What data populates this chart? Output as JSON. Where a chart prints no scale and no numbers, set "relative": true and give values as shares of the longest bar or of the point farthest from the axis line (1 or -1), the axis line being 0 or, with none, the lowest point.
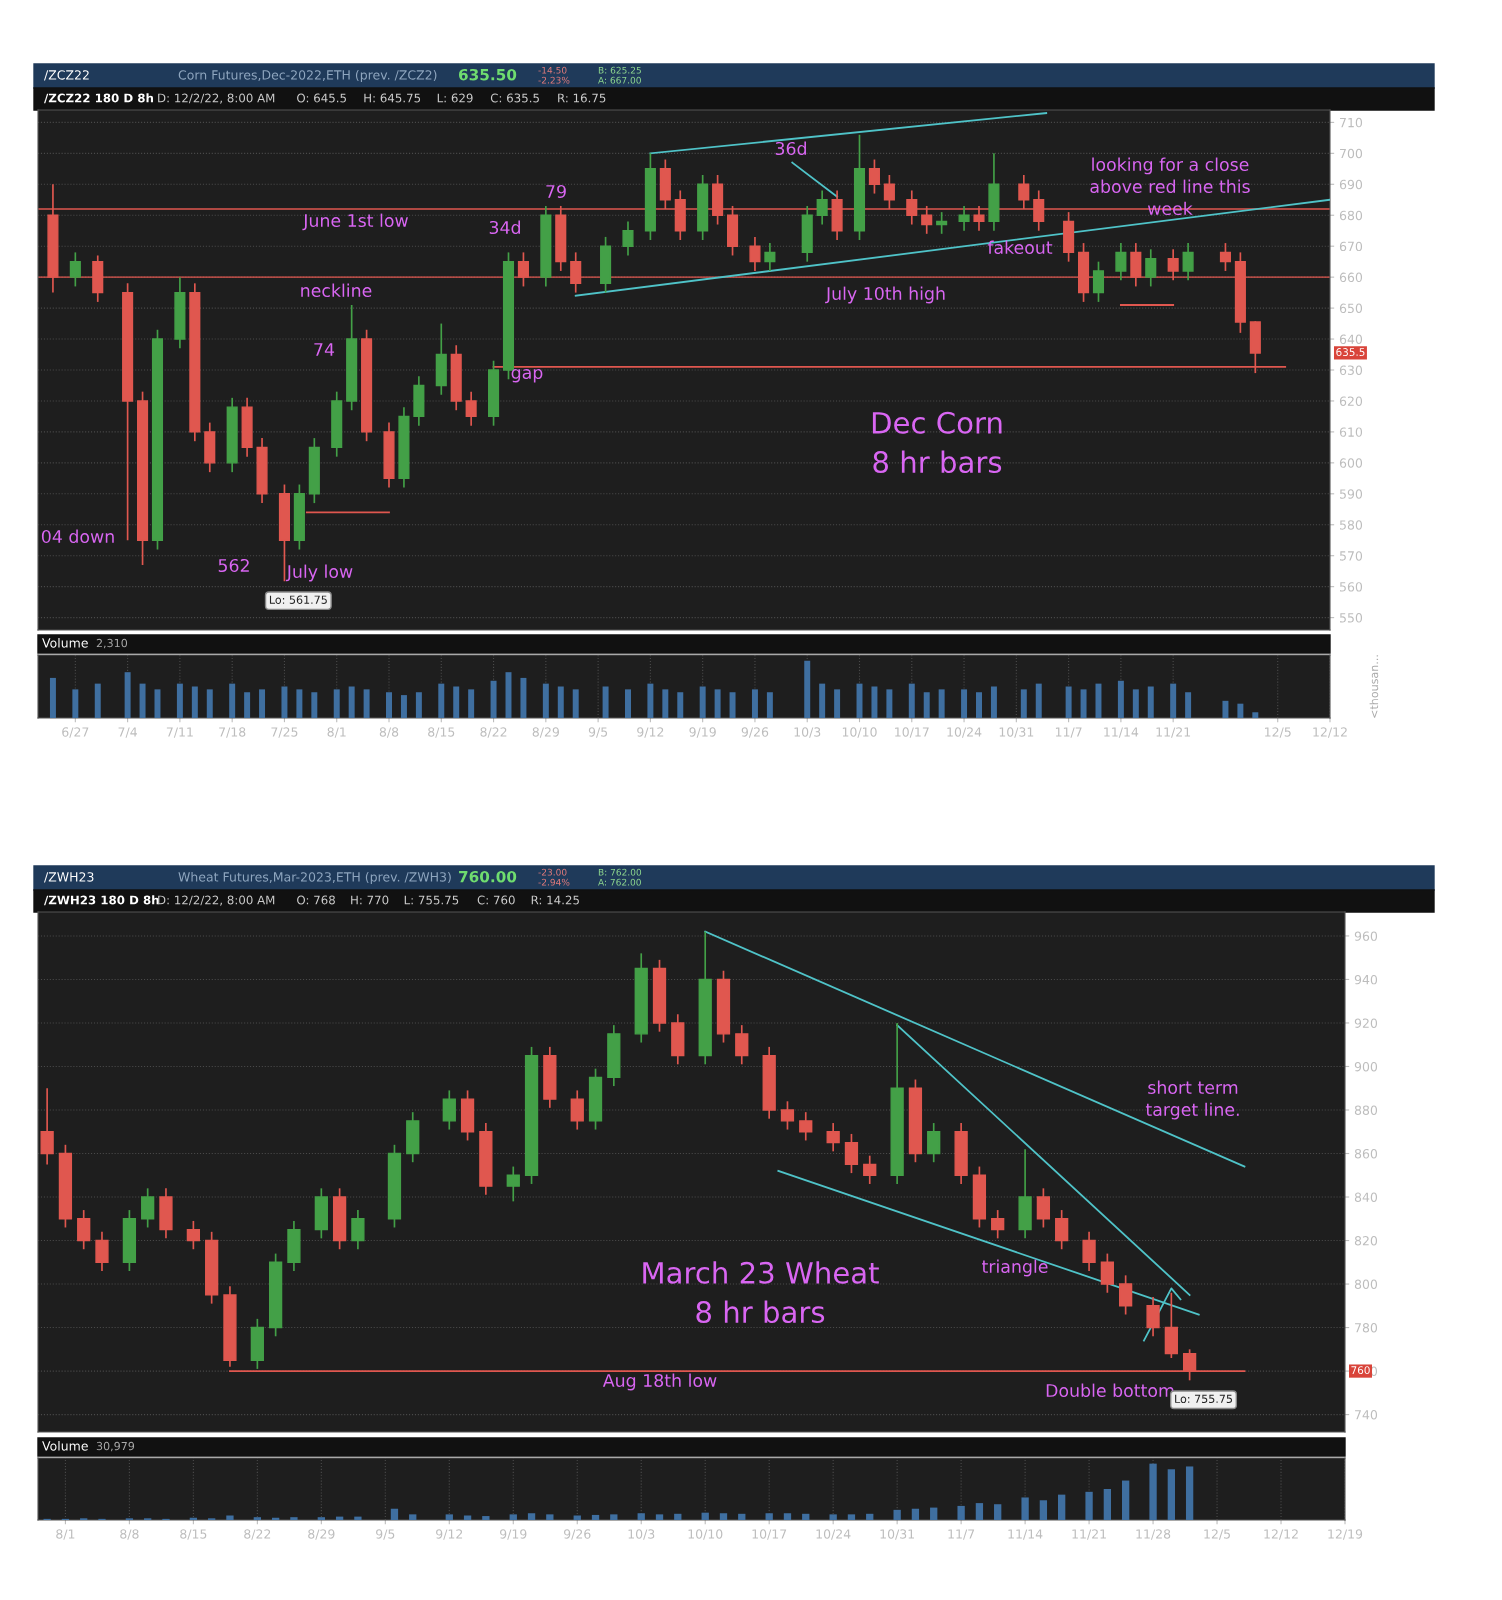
{
  "chart_data": [
    {
      "type": "candlestick",
      "title": "/ZCZ22",
      "subtitle": "Corn Futures,Dec-2022,ETH (prev. /ZCZ2)",
      "x": [
        "2022-06-24",
        "2022-06-27",
        "2022-06-30",
        "2022-07-04",
        "2022-07-06",
        "2022-07-08",
        "2022-07-11",
        "2022-07-13",
        "2022-07-15",
        "2022-07-18",
        "2022-07-20",
        "2022-07-22",
        "2022-07-25",
        "2022-07-27",
        "2022-07-29",
        "2022-08-01",
        "2022-08-03",
        "2022-08-05",
        "2022-08-08",
        "2022-08-10",
        "2022-08-12",
        "2022-08-15",
        "2022-08-17",
        "2022-08-19",
        "2022-08-22",
        "2022-08-24",
        "2022-08-26",
        "2022-08-29",
        "2022-08-31",
        "2022-09-02",
        "2022-09-06",
        "2022-09-09",
        "2022-09-12",
        "2022-09-14",
        "2022-09-16",
        "2022-09-19",
        "2022-09-21",
        "2022-09-23",
        "2022-09-26",
        "2022-09-28",
        "2022-10-03",
        "2022-10-05",
        "2022-10-07",
        "2022-10-10",
        "2022-10-12",
        "2022-10-14",
        "2022-10-17",
        "2022-10-19",
        "2022-10-21",
        "2022-10-24",
        "2022-10-26",
        "2022-10-28",
        "2022-11-01",
        "2022-11-03",
        "2022-11-07",
        "2022-11-09",
        "2022-11-11",
        "2022-11-14",
        "2022-11-16",
        "2022-11-18",
        "2022-11-21",
        "2022-11-23",
        "2022-11-28",
        "2022-11-30",
        "2022-12-02"
      ],
      "ohlc": [
        [
          680,
          690,
          655,
          660
        ],
        [
          660,
          668,
          657,
          665
        ],
        [
          665,
          667,
          652,
          655
        ],
        [
          655,
          658,
          575,
          620
        ],
        [
          620,
          623,
          567,
          575
        ],
        [
          575,
          643,
          572,
          640
        ],
        [
          640,
          660,
          637,
          655
        ],
        [
          655,
          658,
          607,
          610
        ],
        [
          610,
          613,
          597,
          600
        ],
        [
          600,
          621,
          597,
          618
        ],
        [
          618,
          621,
          602,
          605
        ],
        [
          605,
          608,
          587,
          590
        ],
        [
          590,
          593,
          561.75,
          575
        ],
        [
          575,
          593,
          572,
          590
        ],
        [
          590,
          608,
          587,
          605
        ],
        [
          605,
          623,
          602,
          620
        ],
        [
          620,
          651,
          617,
          640
        ],
        [
          640,
          643,
          607,
          610
        ],
        [
          610,
          613,
          592,
          595
        ],
        [
          595,
          618,
          592,
          615
        ],
        [
          615,
          628,
          612,
          625
        ],
        [
          625,
          645,
          622,
          635
        ],
        [
          635,
          638,
          617,
          620
        ],
        [
          620,
          623,
          612,
          615
        ],
        [
          615,
          633,
          612,
          630
        ],
        [
          630,
          668,
          627,
          665
        ],
        [
          665,
          668,
          657,
          660
        ],
        [
          660,
          683,
          657,
          680
        ],
        [
          680,
          683,
          662,
          665
        ],
        [
          665,
          668,
          655,
          658
        ],
        [
          658,
          673,
          655,
          670
        ],
        [
          670,
          678,
          667,
          675
        ],
        [
          675,
          700,
          672,
          695
        ],
        [
          695,
          698,
          682,
          685
        ],
        [
          685,
          688,
          672,
          675
        ],
        [
          675,
          693,
          672,
          690
        ],
        [
          690,
          693,
          677,
          680
        ],
        [
          680,
          683,
          667,
          670
        ],
        [
          670,
          673,
          662,
          665
        ],
        [
          665,
          671,
          662,
          668
        ],
        [
          668,
          683,
          665,
          680
        ],
        [
          680,
          688,
          677,
          685
        ],
        [
          685,
          688,
          672,
          675
        ],
        [
          675,
          706,
          672,
          695
        ],
        [
          695,
          698,
          687,
          690
        ],
        [
          690,
          693,
          682,
          685
        ],
        [
          685,
          688,
          677,
          680
        ],
        [
          680,
          683,
          674,
          677
        ],
        [
          677,
          681,
          674,
          678
        ],
        [
          678,
          683,
          675,
          680
        ],
        [
          680,
          683,
          675,
          678
        ],
        [
          678,
          700,
          675,
          690
        ],
        [
          690,
          693,
          682,
          685
        ],
        [
          685,
          688,
          675,
          678
        ],
        [
          678,
          681,
          665,
          668
        ],
        [
          668,
          671,
          652,
          655
        ],
        [
          655,
          665,
          652,
          662
        ],
        [
          662,
          671,
          659,
          668
        ],
        [
          668,
          671,
          657,
          660
        ],
        [
          660,
          669,
          657,
          666
        ],
        [
          666,
          669,
          659,
          662
        ],
        [
          662,
          671,
          659,
          668
        ],
        [
          668,
          671,
          662,
          665
        ],
        [
          665,
          668,
          642,
          645.5
        ],
        [
          645.5,
          645.75,
          629,
          635.5
        ]
      ],
      "colors": [
        "#e0574f",
        "#43a047",
        "#e0574f",
        "#e0574f",
        "#e0574f",
        "#43a047",
        "#43a047",
        "#e0574f",
        "#e0574f",
        "#43a047",
        "#e0574f",
        "#e0574f",
        "#e0574f",
        "#43a047",
        "#43a047",
        "#43a047",
        "#43a047",
        "#e0574f",
        "#e0574f",
        "#43a047",
        "#43a047",
        "#43a047",
        "#e0574f",
        "#e0574f",
        "#43a047",
        "#43a047",
        "#e0574f",
        "#43a047",
        "#e0574f",
        "#e0574f",
        "#43a047",
        "#43a047",
        "#43a047",
        "#e0574f",
        "#e0574f",
        "#43a047",
        "#e0574f",
        "#e0574f",
        "#e0574f",
        "#43a047",
        "#43a047",
        "#43a047",
        "#e0574f",
        "#43a047",
        "#e0574f",
        "#e0574f",
        "#e0574f",
        "#e0574f",
        "#43a047",
        "#43a047",
        "#e0574f",
        "#43a047",
        "#e0574f",
        "#e0574f",
        "#e0574f",
        "#e0574f",
        "#43a047",
        "#43a047",
        "#e0574f",
        "#43a047",
        "#e0574f",
        "#43a047",
        "#e0574f",
        "#e0574f",
        "#e0574f"
      ],
      "series": [
        {
          "type": "line",
          "color": "#4fc3c8",
          "x": [
            "2022-09-12",
            "2022-11-04"
          ],
          "values": [
            700,
            713
          ]
        },
        {
          "type": "line",
          "color": "#4fc3c8",
          "x": [
            "2022-09-02",
            "2022-12-12"
          ],
          "values": [
            654,
            685
          ]
        },
        {
          "type": "line",
          "color": "#4fc3c8",
          "x": [
            "2022-10-01",
            "2022-10-07"
          ],
          "values": [
            697,
            686
          ]
        },
        {
          "type": "line",
          "color": "#e0574f",
          "x": [
            "2022-07-28",
            "2022-08-08"
          ],
          "values": [
            584,
            584
          ]
        },
        {
          "type": "line",
          "color": "#e0574f",
          "x": [
            "2022-11-14",
            "2022-11-21"
          ],
          "values": [
            651,
            651
          ]
        },
        {
          "type": "line",
          "color": "#e0574f",
          "x": [
            "2022-08-22",
            "2022-12-06"
          ],
          "values": [
            631,
            631
          ]
        }
      ],
      "ref_lines": [
        {
          "axis": "y",
          "value": 682,
          "color": "#e0574f"
        },
        {
          "axis": "y",
          "value": 660,
          "color": "#e0574f"
        }
      ],
      "annotations": [
        "635.50",
        "-14.50",
        "-2.23%",
        "B: 625.25",
        "A: 667.00",
        "/ZCZ22 180 D 8h",
        "D: 12/2/22, 8:00 AM",
        "O: 645.5",
        "H: 645.75",
        "L: 629",
        "C: 635.5",
        "R: 16.75",
        "Dec Corn\n8 hr bars",
        "June 1st low",
        "neckline",
        "gap",
        "July 10th high",
        "looking for a close\nabove red line this\nweek",
        "fakeout",
        "79",
        "34d",
        "36d",
        "74",
        "562",
        "July low",
        "04 down",
        "635.5",
        {
          "text": "Lo: 561.75",
          "x": "2022-07-25",
          "y": 561.75
        }
      ],
      "xlim": [
        "2022-06-22",
        "2022-12-12"
      ],
      "ylim": [
        546,
        714
      ],
      "yticks": [
        550,
        560,
        570,
        580,
        590,
        600,
        610,
        620,
        630,
        640,
        650,
        660,
        670,
        680,
        690,
        700,
        710
      ],
      "tick_labels": "y",
      "grid": true
    },
    {
      "type": "bar",
      "title": "Volume",
      "relative": true,
      "ylabel": "<thousan...",
      "annotations": [
        "2,310"
      ],
      "tick_labels": "x",
      "grid": true,
      "x": [
        "2022-06-24",
        "2022-06-27",
        "2022-06-30",
        "2022-07-04",
        "2022-07-06",
        "2022-07-08",
        "2022-07-11",
        "2022-07-13",
        "2022-07-15",
        "2022-07-18",
        "2022-07-20",
        "2022-07-22",
        "2022-07-25",
        "2022-07-27",
        "2022-07-29",
        "2022-08-01",
        "2022-08-03",
        "2022-08-05",
        "2022-08-08",
        "2022-08-10",
        "2022-08-12",
        "2022-08-15",
        "2022-08-17",
        "2022-08-19",
        "2022-08-22",
        "2022-08-24",
        "2022-08-26",
        "2022-08-29",
        "2022-08-31",
        "2022-09-02",
        "2022-09-06",
        "2022-09-09",
        "2022-09-12",
        "2022-09-14",
        "2022-09-16",
        "2022-09-19",
        "2022-09-21",
        "2022-09-23",
        "2022-09-26",
        "2022-09-28",
        "2022-10-03",
        "2022-10-05",
        "2022-10-07",
        "2022-10-10",
        "2022-10-12",
        "2022-10-14",
        "2022-10-17",
        "2022-10-19",
        "2022-10-21",
        "2022-10-24",
        "2022-10-26",
        "2022-10-28",
        "2022-11-01",
        "2022-11-03",
        "2022-11-07",
        "2022-11-09",
        "2022-11-11",
        "2022-11-14",
        "2022-11-16",
        "2022-11-18",
        "2022-11-21",
        "2022-11-23",
        "2022-11-28",
        "2022-11-30",
        "2022-12-02"
      ],
      "values": [
        0.7,
        0.5,
        0.6,
        0.8,
        0.6,
        0.5,
        0.6,
        0.55,
        0.5,
        0.6,
        0.45,
        0.5,
        0.55,
        0.5,
        0.45,
        0.5,
        0.55,
        0.5,
        0.45,
        0.4,
        0.45,
        0.6,
        0.55,
        0.5,
        0.65,
        0.8,
        0.7,
        0.6,
        0.55,
        0.5,
        0.55,
        0.5,
        0.6,
        0.5,
        0.45,
        0.55,
        0.5,
        0.45,
        0.5,
        0.45,
        1,
        0.6,
        0.5,
        0.6,
        0.55,
        0.5,
        0.6,
        0.45,
        0.5,
        0.5,
        0.45,
        0.55,
        0.5,
        0.6,
        0.55,
        0.5,
        0.6,
        0.65,
        0.5,
        0.55,
        0.6,
        0.45,
        0.3,
        0.25,
        0.1
      ],
      "color": "#3f6fa0",
      "xlim": [
        "2022-06-22",
        "2022-12-12"
      ],
      "xticks": [
        {
          "value": "2022-06-27",
          "label": "6/27"
        },
        {
          "value": "2022-07-04",
          "label": "7/4"
        },
        {
          "value": "2022-07-11",
          "label": "7/11"
        },
        {
          "value": "2022-07-18",
          "label": "7/18"
        },
        {
          "value": "2022-07-25",
          "label": "7/25"
        },
        {
          "value": "2022-08-01",
          "label": "8/1"
        },
        {
          "value": "2022-08-08",
          "label": "8/8"
        },
        {
          "value": "2022-08-15",
          "label": "8/15"
        },
        {
          "value": "2022-08-22",
          "label": "8/22"
        },
        {
          "value": "2022-08-29",
          "label": "8/29"
        },
        {
          "value": "2022-09-05",
          "label": "9/5"
        },
        {
          "value": "2022-09-12",
          "label": "9/12"
        },
        {
          "value": "2022-09-19",
          "label": "9/19"
        },
        {
          "value": "2022-09-26",
          "label": "9/26"
        },
        {
          "value": "2022-10-03",
          "label": "10/3"
        },
        {
          "value": "2022-10-10",
          "label": "10/10"
        },
        {
          "value": "2022-10-17",
          "label": "10/17"
        },
        {
          "value": "2022-10-24",
          "label": "10/24"
        },
        {
          "value": "2022-10-31",
          "label": "10/31"
        },
        {
          "value": "2022-11-07",
          "label": "11/7"
        },
        {
          "value": "2022-11-14",
          "label": "11/14"
        },
        {
          "value": "2022-11-21",
          "label": "11/21"
        },
        {
          "value": "2022-12-05",
          "label": "12/5"
        },
        {
          "value": "2022-12-12",
          "label": "12/12"
        }
      ]
    },
    {
      "type": "candlestick",
      "title": "/ZWH23",
      "subtitle": "Wheat Futures,Mar-2023,ETH (prev. /ZWH3)",
      "x": [
        "2022-07-30",
        "2022-08-01",
        "2022-08-03",
        "2022-08-05",
        "2022-08-08",
        "2022-08-10",
        "2022-08-12",
        "2022-08-15",
        "2022-08-17",
        "2022-08-19",
        "2022-08-22",
        "2022-08-24",
        "2022-08-26",
        "2022-08-29",
        "2022-08-31",
        "2022-09-02",
        "2022-09-06",
        "2022-09-08",
        "2022-09-12",
        "2022-09-14",
        "2022-09-16",
        "2022-09-19",
        "2022-09-21",
        "2022-09-23",
        "2022-09-26",
        "2022-09-28",
        "2022-09-30",
        "2022-10-03",
        "2022-10-05",
        "2022-10-07",
        "2022-10-10",
        "2022-10-12",
        "2022-10-14",
        "2022-10-17",
        "2022-10-19",
        "2022-10-21",
        "2022-10-24",
        "2022-10-26",
        "2022-10-28",
        "2022-10-31",
        "2022-11-02",
        "2022-11-04",
        "2022-11-07",
        "2022-11-09",
        "2022-11-11",
        "2022-11-14",
        "2022-11-16",
        "2022-11-18",
        "2022-11-21",
        "2022-11-23",
        "2022-11-25",
        "2022-11-28",
        "2022-11-30",
        "2022-12-02"
      ],
      "ohlc": [
        [
          870,
          890,
          855,
          860
        ],
        [
          860,
          864,
          826,
          830
        ],
        [
          830,
          834,
          816,
          820
        ],
        [
          820,
          824,
          806,
          810
        ],
        [
          810,
          834,
          806,
          830
        ],
        [
          830,
          844,
          826,
          840
        ],
        [
          840,
          844,
          821,
          825
        ],
        [
          825,
          829,
          816,
          820
        ],
        [
          820,
          824,
          791,
          795
        ],
        [
          795,
          799,
          762,
          765
        ],
        [
          765,
          784,
          761,
          780
        ],
        [
          780,
          814,
          776,
          810
        ],
        [
          810,
          829,
          806,
          825
        ],
        [
          825,
          844,
          821,
          840
        ],
        [
          840,
          844,
          816,
          820
        ],
        [
          820,
          834,
          816,
          830
        ],
        [
          830,
          864,
          826,
          860
        ],
        [
          860,
          879,
          856,
          875
        ],
        [
          875,
          889,
          871,
          885
        ],
        [
          885,
          889,
          866,
          870
        ],
        [
          870,
          874,
          841,
          845
        ],
        [
          845,
          854,
          838,
          850
        ],
        [
          850,
          909,
          846,
          905
        ],
        [
          905,
          909,
          881,
          885
        ],
        [
          885,
          889,
          871,
          875
        ],
        [
          875,
          899,
          871,
          895
        ],
        [
          895,
          919,
          891,
          915
        ],
        [
          915,
          952,
          911,
          945
        ],
        [
          945,
          949,
          916,
          920
        ],
        [
          920,
          924,
          901,
          905
        ],
        [
          905,
          962,
          901,
          940
        ],
        [
          940,
          944,
          911,
          915
        ],
        [
          915,
          919,
          901,
          905
        ],
        [
          905,
          909,
          876,
          880
        ],
        [
          880,
          884,
          871,
          875
        ],
        [
          875,
          879,
          866,
          870
        ],
        [
          870,
          874,
          861,
          865
        ],
        [
          865,
          869,
          851,
          855
        ],
        [
          855,
          859,
          846,
          850
        ],
        [
          850,
          920,
          846,
          890
        ],
        [
          890,
          894,
          856,
          860
        ],
        [
          860,
          874,
          856,
          870
        ],
        [
          870,
          874,
          846,
          850
        ],
        [
          850,
          854,
          826,
          830
        ],
        [
          830,
          834,
          821,
          825
        ],
        [
          825,
          862,
          821,
          840
        ],
        [
          840,
          844,
          826,
          830
        ],
        [
          830,
          834,
          816,
          820
        ],
        [
          820,
          824,
          806,
          810
        ],
        [
          810,
          814,
          796,
          800
        ],
        [
          800,
          804,
          786,
          790
        ],
        [
          790,
          794,
          776,
          780
        ],
        [
          780,
          796,
          766,
          768
        ],
        [
          768,
          770,
          755.75,
          760
        ]
      ],
      "colors": [
        "#e0574f",
        "#e0574f",
        "#e0574f",
        "#e0574f",
        "#43a047",
        "#43a047",
        "#e0574f",
        "#e0574f",
        "#e0574f",
        "#e0574f",
        "#43a047",
        "#43a047",
        "#43a047",
        "#43a047",
        "#e0574f",
        "#43a047",
        "#43a047",
        "#43a047",
        "#43a047",
        "#e0574f",
        "#e0574f",
        "#43a047",
        "#43a047",
        "#e0574f",
        "#e0574f",
        "#43a047",
        "#43a047",
        "#43a047",
        "#e0574f",
        "#e0574f",
        "#43a047",
        "#e0574f",
        "#e0574f",
        "#e0574f",
        "#e0574f",
        "#e0574f",
        "#e0574f",
        "#e0574f",
        "#e0574f",
        "#43a047",
        "#e0574f",
        "#43a047",
        "#e0574f",
        "#e0574f",
        "#e0574f",
        "#43a047",
        "#e0574f",
        "#e0574f",
        "#e0574f",
        "#e0574f",
        "#e0574f",
        "#e0574f",
        "#e0574f",
        "#e0574f"
      ],
      "series": [
        {
          "type": "line",
          "color": "#4fc3c8",
          "x": [
            "2022-10-10",
            "2022-12-08"
          ],
          "values": [
            962,
            854
          ]
        },
        {
          "type": "line",
          "color": "#4fc3c8",
          "x": [
            "2022-10-31",
            "2022-12-02"
          ],
          "values": [
            919,
            795
          ]
        },
        {
          "type": "line",
          "color": "#4fc3c8",
          "x": [
            "2022-10-18",
            "2022-12-03"
          ],
          "values": [
            852,
            786
          ]
        },
        {
          "type": "line",
          "color": "#4fc3c8",
          "x": [
            "2022-11-27",
            "2022-11-30",
            "2022-12-01"
          ],
          "values": [
            774,
            798,
            793
          ]
        },
        {
          "type": "line",
          "color": "#e0574f",
          "x": [
            "2022-08-19",
            "2022-12-08"
          ],
          "values": [
            760,
            760
          ]
        }
      ],
      "annotations": [
        "760.00",
        "-23.00",
        "-2.94%",
        "B: 762.00",
        "A: 762.00",
        "/ZWH23 180 D 8h",
        "D: 12/2/22, 8:00 AM",
        "O: 768",
        "H: 770",
        "L: 755.75",
        "C: 760",
        "R: 14.25",
        "March 23 Wheat\n8 hr bars",
        "short term\ntarget line.",
        "triangle",
        "Aug 18th low",
        "Double bottom",
        "760",
        {
          "text": "Lo: 755.75",
          "x": "2022-12-02",
          "y": 755.75
        }
      ],
      "xlim": [
        "2022-07-29",
        "2022-12-19"
      ],
      "ylim": [
        732,
        971
      ],
      "yticks": [
        740,
        760,
        780,
        800,
        820,
        840,
        860,
        880,
        900,
        920,
        940,
        960
      ],
      "tick_labels": "y",
      "grid": true
    },
    {
      "type": "bar",
      "title": "Volume",
      "relative": true,
      "annotations": [
        "30,979"
      ],
      "tick_labels": "x",
      "grid": true,
      "x": [
        "2022-07-30",
        "2022-08-01",
        "2022-08-03",
        "2022-08-05",
        "2022-08-08",
        "2022-08-10",
        "2022-08-12",
        "2022-08-15",
        "2022-08-17",
        "2022-08-19",
        "2022-08-22",
        "2022-08-24",
        "2022-08-26",
        "2022-08-29",
        "2022-08-31",
        "2022-09-02",
        "2022-09-06",
        "2022-09-08",
        "2022-09-12",
        "2022-09-14",
        "2022-09-16",
        "2022-09-19",
        "2022-09-21",
        "2022-09-23",
        "2022-09-26",
        "2022-09-28",
        "2022-09-30",
        "2022-10-03",
        "2022-10-05",
        "2022-10-07",
        "2022-10-10",
        "2022-10-12",
        "2022-10-14",
        "2022-10-17",
        "2022-10-19",
        "2022-10-21",
        "2022-10-24",
        "2022-10-26",
        "2022-10-28",
        "2022-10-31",
        "2022-11-02",
        "2022-11-04",
        "2022-11-07",
        "2022-11-09",
        "2022-11-11",
        "2022-11-14",
        "2022-11-16",
        "2022-11-18",
        "2022-11-21",
        "2022-11-23",
        "2022-11-25",
        "2022-11-28",
        "2022-11-30",
        "2022-12-02"
      ],
      "values": [
        0.02,
        0.02,
        0.03,
        0.02,
        0.03,
        0.03,
        0.02,
        0.04,
        0.03,
        0.08,
        0.05,
        0.04,
        0.05,
        0.05,
        0.06,
        0.06,
        0.2,
        0.1,
        0.1,
        0.08,
        0.07,
        0.1,
        0.12,
        0.1,
        0.08,
        0.09,
        0.1,
        0.12,
        0.1,
        0.11,
        0.13,
        0.12,
        0.11,
        0.12,
        0.12,
        0.11,
        0.1,
        0.1,
        0.11,
        0.18,
        0.2,
        0.22,
        0.25,
        0.3,
        0.28,
        0.4,
        0.35,
        0.45,
        0.5,
        0.55,
        0.7,
        1,
        0.9,
        0.95
      ],
      "color": "#3f6fa0",
      "xlim": [
        "2022-07-29",
        "2022-12-19"
      ],
      "xticks": [
        {
          "value": "2022-08-01",
          "label": "8/1"
        },
        {
          "value": "2022-08-08",
          "label": "8/8"
        },
        {
          "value": "2022-08-15",
          "label": "8/15"
        },
        {
          "value": "2022-08-22",
          "label": "8/22"
        },
        {
          "value": "2022-08-29",
          "label": "8/29"
        },
        {
          "value": "2022-09-05",
          "label": "9/5"
        },
        {
          "value": "2022-09-12",
          "label": "9/12"
        },
        {
          "value": "2022-09-19",
          "label": "9/19"
        },
        {
          "value": "2022-09-26",
          "label": "9/26"
        },
        {
          "value": "2022-10-03",
          "label": "10/3"
        },
        {
          "value": "2022-10-10",
          "label": "10/10"
        },
        {
          "value": "2022-10-17",
          "label": "10/17"
        },
        {
          "value": "2022-10-24",
          "label": "10/24"
        },
        {
          "value": "2022-10-31",
          "label": "10/31"
        },
        {
          "value": "2022-11-07",
          "label": "11/7"
        },
        {
          "value": "2022-11-14",
          "label": "11/14"
        },
        {
          "value": "2022-11-21",
          "label": "11/21"
        },
        {
          "value": "2022-11-28",
          "label": "11/28"
        },
        {
          "value": "2022-12-05",
          "label": "12/5"
        },
        {
          "value": "2022-12-12",
          "label": "12/12"
        },
        {
          "value": "2022-12-19",
          "label": "12/19"
        }
      ]
    }
  ]
}
